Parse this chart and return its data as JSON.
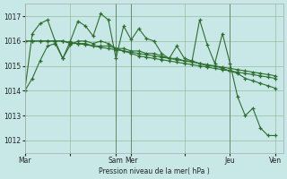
{
  "background_color": "#c8e8e8",
  "grid_color": "#99bb99",
  "line_color": "#2d6e2d",
  "xlabel": "Pression niveau de la mer( hPa )",
  "ylim": [
    1011.5,
    1017.5
  ],
  "yticks": [
    1012,
    1013,
    1014,
    1015,
    1016,
    1017
  ],
  "x_tick_positions": [
    0,
    6,
    12,
    14,
    21,
    27,
    33
  ],
  "x_tick_labels": [
    "Mar",
    "",
    "Sam",
    "Mer",
    "",
    "Jeu",
    "Ven"
  ],
  "vlines_x": [
    12,
    14,
    27
  ],
  "xlim": [
    0,
    34
  ],
  "series1_x": [
    0,
    1,
    2,
    3,
    4,
    5,
    6,
    7,
    8,
    9,
    10,
    11,
    12,
    13,
    14,
    15,
    16,
    17,
    18,
    19,
    20,
    21,
    22,
    23,
    24,
    25,
    26,
    27,
    28,
    29,
    30,
    31,
    32,
    33
  ],
  "series1_y": [
    1014.0,
    1016.3,
    1016.7,
    1016.85,
    1016.0,
    1015.3,
    1016.0,
    1016.8,
    1016.6,
    1016.2,
    1017.1,
    1016.85,
    1015.3,
    1016.6,
    1016.05,
    1016.5,
    1016.1,
    1016.0,
    1015.5,
    1015.3,
    1015.8,
    1015.3,
    1015.2,
    1016.85,
    1015.85,
    1015.1,
    1016.3,
    1015.1,
    1013.75,
    1013.0,
    1013.3,
    1012.5,
    1012.2,
    1012.2
  ],
  "series2_x": [
    0,
    1,
    2,
    3,
    4,
    5,
    6,
    7,
    8,
    9,
    10,
    11,
    12,
    13,
    14,
    15,
    16,
    17,
    18,
    19,
    20,
    21,
    22,
    23,
    24,
    25,
    26,
    27,
    28,
    29,
    30,
    31,
    32,
    33
  ],
  "series2_y": [
    1016.0,
    1016.0,
    1016.0,
    1016.0,
    1016.0,
    1016.0,
    1015.9,
    1015.9,
    1015.9,
    1015.8,
    1015.8,
    1015.8,
    1015.7,
    1015.7,
    1015.6,
    1015.6,
    1015.5,
    1015.5,
    1015.4,
    1015.3,
    1015.3,
    1015.2,
    1015.2,
    1015.1,
    1015.0,
    1015.0,
    1014.9,
    1014.8,
    1014.7,
    1014.5,
    1014.4,
    1014.3,
    1014.2,
    1014.1
  ],
  "series3_x": [
    0,
    1,
    2,
    3,
    4,
    5,
    6,
    7,
    8,
    9,
    10,
    11,
    12,
    13,
    14,
    15,
    16,
    17,
    18,
    19,
    20,
    21,
    22,
    23,
    24,
    25,
    26,
    27,
    28,
    29,
    30,
    31,
    32,
    33
  ],
  "series3_y": [
    1016.0,
    1016.0,
    1016.0,
    1016.0,
    1016.0,
    1016.0,
    1015.95,
    1015.9,
    1015.85,
    1015.8,
    1015.75,
    1015.7,
    1015.65,
    1015.6,
    1015.55,
    1015.5,
    1015.45,
    1015.4,
    1015.35,
    1015.3,
    1015.25,
    1015.2,
    1015.15,
    1015.1,
    1015.05,
    1015.0,
    1014.95,
    1014.9,
    1014.85,
    1014.8,
    1014.75,
    1014.7,
    1014.65,
    1014.6
  ],
  "series4_x": [
    0,
    1,
    2,
    3,
    4,
    5,
    6,
    7,
    8,
    9,
    10,
    11,
    12,
    13,
    14,
    15,
    16,
    17,
    18,
    19,
    20,
    21,
    22,
    23,
    24,
    25,
    26,
    27,
    28,
    29,
    30,
    31,
    32,
    33
  ],
  "series4_y": [
    1014.0,
    1014.5,
    1015.2,
    1015.8,
    1015.9,
    1015.3,
    1015.85,
    1016.0,
    1016.0,
    1015.9,
    1016.0,
    1015.9,
    1015.7,
    1015.6,
    1015.5,
    1015.4,
    1015.35,
    1015.3,
    1015.25,
    1015.2,
    1015.15,
    1015.1,
    1015.05,
    1015.0,
    1014.95,
    1014.9,
    1014.85,
    1014.8,
    1014.75,
    1014.7,
    1014.65,
    1014.6,
    1014.55,
    1014.5
  ]
}
